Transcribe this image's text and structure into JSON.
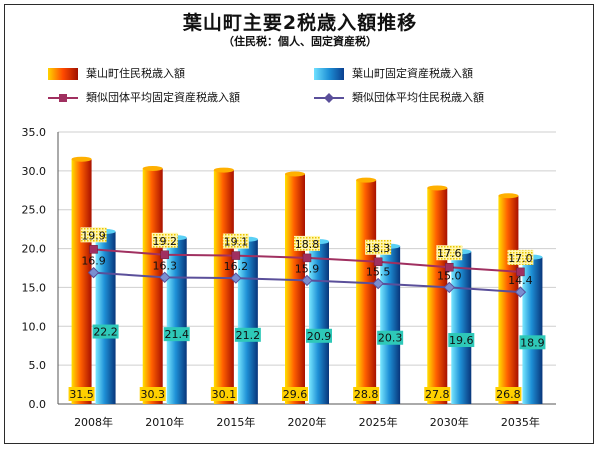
{
  "title": "葉山町主要2税歳入額推移",
  "subtitle": "（住民税：個人、固定資産税）",
  "chart_data": {
    "type": "bar",
    "categories": [
      "2008年",
      "2010年",
      "2015年",
      "2020年",
      "2025年",
      "2030年",
      "2035年"
    ],
    "ylim": [
      0,
      35
    ],
    "yticks": [
      "0.0",
      "5.0",
      "10.0",
      "15.0",
      "20.0",
      "25.0",
      "30.0",
      "35.0"
    ],
    "grid": true,
    "legend_position": "top",
    "series": [
      {
        "name": "葉山町住民税歳入額",
        "kind": "bar",
        "values": [
          31.5,
          30.3,
          30.1,
          29.6,
          28.8,
          27.8,
          26.8
        ],
        "labels": [
          "31.5",
          "30.3",
          "30.1",
          "29.6",
          "28.8",
          "27.8",
          "26.8"
        ],
        "color": "#ff6a00"
      },
      {
        "name": "葉山町固定資産税歳入額",
        "kind": "bar",
        "values": [
          22.2,
          21.4,
          21.2,
          20.9,
          20.3,
          19.6,
          18.9
        ],
        "labels": [
          "22.2",
          "21.4",
          "21.2",
          "20.9",
          "20.3",
          "19.6",
          "18.9"
        ],
        "color": "#1e90d6"
      },
      {
        "name": "類似団体平均固定資産税歳入額",
        "kind": "line",
        "values": [
          19.9,
          19.2,
          19.1,
          18.8,
          18.3,
          17.6,
          17.0
        ],
        "labels": [
          "19.9",
          "19.2",
          "19.1",
          "18.8",
          "18.3",
          "17.6",
          "17.0"
        ],
        "color": "#a03060"
      },
      {
        "name": "類似団体平均住民税歳入額",
        "kind": "line",
        "values": [
          16.9,
          16.3,
          16.2,
          15.9,
          15.5,
          15.0,
          14.4
        ],
        "labels": [
          "16.9",
          "16.3",
          "16.2",
          "15.9",
          "15.5",
          "15.0",
          "14.4"
        ],
        "color": "#5a4f9a"
      }
    ]
  }
}
